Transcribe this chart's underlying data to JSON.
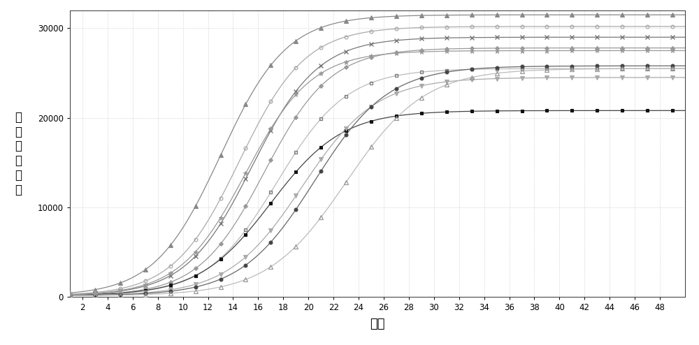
{
  "xlabel": "循环",
  "xlim": [
    1,
    50
  ],
  "ylim": [
    0,
    32000
  ],
  "xticks": [
    2,
    4,
    6,
    8,
    10,
    12,
    14,
    16,
    18,
    20,
    22,
    24,
    26,
    28,
    30,
    32,
    34,
    36,
    38,
    40,
    42,
    44,
    46,
    48
  ],
  "yticks": [
    0,
    10000,
    20000,
    30000
  ],
  "background_color": "#ffffff",
  "curves": [
    {
      "color": "#888888",
      "marker": "^",
      "mfc": "#888888",
      "mec": "#888888",
      "midpoint": 13.0,
      "plateau": 31500,
      "baseline": 100,
      "k": 0.38
    },
    {
      "color": "#aaaaaa",
      "marker": "o",
      "mfc": "none",
      "mec": "#aaaaaa",
      "midpoint": 14.5,
      "plateau": 30200,
      "baseline": 100,
      "k": 0.38
    },
    {
      "color": "#777777",
      "marker": "x",
      "mfc": "#777777",
      "mec": "#777777",
      "midpoint": 15.5,
      "plateau": 29000,
      "baseline": 100,
      "k": 0.38
    },
    {
      "color": "#999999",
      "marker": "D",
      "mfc": "#999999",
      "mec": "#999999",
      "midpoint": 16.5,
      "plateau": 27800,
      "baseline": 100,
      "k": 0.38
    },
    {
      "color": "#bbbbbb",
      "marker": "s",
      "mfc": "none",
      "mec": "#777777",
      "midpoint": 17.5,
      "plateau": 25500,
      "baseline": 100,
      "k": 0.36
    },
    {
      "color": "#444444",
      "marker": "s",
      "mfc": "#111111",
      "mec": "#111111",
      "midpoint": 17.0,
      "plateau": 20800,
      "baseline": 100,
      "k": 0.35
    },
    {
      "color": "#aaaaaa",
      "marker": "v",
      "mfc": "#aaaaaa",
      "mec": "#aaaaaa",
      "midpoint": 19.5,
      "plateau": 24500,
      "baseline": 100,
      "k": 0.34
    },
    {
      "color": "#666666",
      "marker": "o",
      "mfc": "#444444",
      "mec": "#444444",
      "midpoint": 20.5,
      "plateau": 25800,
      "baseline": 100,
      "k": 0.34
    },
    {
      "color": "#bbbbbb",
      "marker": "^",
      "mfc": "none",
      "mec": "#999999",
      "midpoint": 23.0,
      "plateau": 25500,
      "baseline": 100,
      "k": 0.32
    },
    {
      "color": "#999999",
      "marker": "*",
      "mfc": "#999999",
      "mec": "#999999",
      "midpoint": 15.0,
      "plateau": 27500,
      "baseline": 100,
      "k": 0.38
    }
  ]
}
